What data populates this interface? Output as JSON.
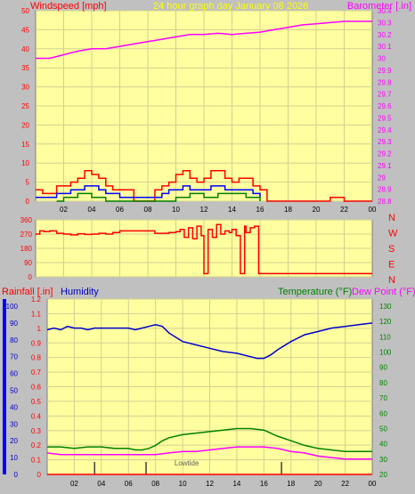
{
  "chart_data": [
    {
      "type": "line",
      "title": "24 hour graph day   January 08 2026",
      "left_axis_label": "Windspeed [mph]",
      "right_axis_label": "Barometer [.in]",
      "x_tick_labels": [
        "02",
        "04",
        "06",
        "08",
        "10",
        "12",
        "14",
        "16",
        "18",
        "20",
        "22",
        "00"
      ],
      "ylim_left": [
        0,
        50
      ],
      "left_ticks": [
        "0",
        "5",
        "10",
        "15",
        "20",
        "25",
        "30",
        "35",
        "40",
        "45",
        "50"
      ],
      "ylim_right": [
        28.8,
        30.4
      ],
      "right_ticks": [
        "28.8",
        "28.9",
        "29",
        "29.1",
        "29.2",
        "29.3",
        "29.4",
        "29.5",
        "29.6",
        "29.7",
        "29.8",
        "29.9",
        "30",
        "30.1",
        "30.2",
        "30.3",
        "30.4"
      ],
      "grid": true,
      "barometer": {
        "color": "#ff00ff",
        "x": [
          0.0,
          1.0,
          2.0,
          3.0,
          4.0,
          5.0,
          6.0,
          7.0,
          8.0,
          9.0,
          10.0,
          11.0,
          12.0,
          13.0,
          14.0,
          15.0,
          16.0,
          17.0,
          18.0,
          19.0,
          20.0,
          21.0,
          22.0,
          23.0,
          24.0
        ],
        "y": [
          30.0,
          30.0,
          30.03,
          30.06,
          30.08,
          30.08,
          30.1,
          30.12,
          30.14,
          30.16,
          30.18,
          30.2,
          30.2,
          30.21,
          30.2,
          30.21,
          30.22,
          30.24,
          30.26,
          30.28,
          30.29,
          30.3,
          30.31,
          30.31,
          30.31
        ]
      },
      "wind_gust": {
        "color": "#ff0000",
        "x": [
          0.0,
          0.5,
          1.0,
          1.5,
          2.0,
          2.5,
          3.0,
          3.5,
          4.0,
          4.5,
          5.0,
          5.5,
          6.0,
          7.0,
          7.5,
          8.0,
          8.5,
          9.0,
          9.5,
          10.0,
          10.5,
          11.0,
          11.5,
          12.0,
          12.5,
          13.0,
          13.5,
          14.0,
          14.5,
          15.0,
          15.5,
          16.0,
          16.5,
          17.0,
          18.0,
          19.0,
          20.0,
          20.5,
          21.0,
          22.0,
          23.0,
          24.0
        ],
        "y": [
          3,
          2,
          2,
          4,
          4,
          5,
          6,
          8,
          7,
          6,
          4,
          3,
          3,
          0,
          0,
          0,
          3,
          4,
          5,
          7,
          8,
          6,
          5,
          6,
          8,
          8,
          6,
          5,
          6,
          6,
          4,
          3,
          0,
          0,
          0,
          0,
          0,
          0,
          1,
          0,
          0,
          0
        ]
      },
      "wind_avg": {
        "color": "#0000ff",
        "x": [
          0.0,
          0.5,
          1.0,
          1.5,
          2.0,
          2.5,
          3.0,
          3.5,
          4.0,
          4.5,
          5.0,
          5.5,
          6.0,
          8.5,
          9.0,
          9.5,
          10.0,
          10.5,
          11.0,
          11.5,
          12.0,
          12.5,
          13.0,
          13.5,
          14.0,
          14.5,
          15.0,
          15.5,
          16.0
        ],
        "y": [
          1,
          1,
          1,
          2,
          2,
          3,
          3,
          4,
          4,
          3,
          2,
          2,
          1,
          1,
          2,
          3,
          3,
          4,
          3,
          3,
          3,
          4,
          4,
          3,
          3,
          3,
          3,
          2,
          1
        ]
      },
      "wind_low": {
        "color": "#008000",
        "x": [
          1.5,
          2.0,
          2.5,
          3.0,
          3.5,
          4.0,
          4.5,
          5.0,
          9.0,
          10.0,
          11.0,
          12.0,
          13.0,
          14.0,
          15.0,
          16.0
        ],
        "y": [
          0,
          1,
          1,
          2,
          2,
          1,
          1,
          0,
          0,
          1,
          2,
          1,
          2,
          2,
          1,
          0
        ]
      }
    },
    {
      "type": "line",
      "series_name": "Wind direction",
      "color": "#ff0000",
      "ylim": [
        0,
        360
      ],
      "left_ticks": [
        "0",
        "90",
        "180",
        "270",
        "360"
      ],
      "right_labels": [
        "N",
        "W",
        "S",
        "E",
        "N"
      ],
      "x": [
        0.0,
        0.3,
        0.6,
        1.0,
        1.5,
        2.0,
        2.5,
        3.0,
        3.5,
        4.0,
        4.5,
        5.0,
        5.5,
        6.0,
        6.5,
        7.0,
        7.5,
        8.0,
        8.5,
        9.0,
        9.5,
        10.0,
        10.3,
        10.6,
        10.9,
        11.2,
        11.5,
        11.8,
        12.0,
        12.3,
        12.6,
        12.9,
        13.2,
        13.5,
        13.8,
        14.0,
        14.3,
        14.6,
        14.9,
        15.0,
        15.3,
        15.6,
        15.9,
        16.2,
        16.5,
        17.0,
        18.0,
        20.0,
        22.0,
        24.0
      ],
      "y": [
        270,
        290,
        285,
        290,
        275,
        270,
        265,
        272,
        268,
        270,
        275,
        270,
        280,
        290,
        290,
        290,
        290,
        290,
        275,
        275,
        280,
        285,
        300,
        250,
        310,
        240,
        320,
        260,
        20,
        300,
        250,
        330,
        270,
        290,
        280,
        300,
        260,
        20,
        320,
        280,
        310,
        320,
        20,
        20,
        20,
        20,
        20,
        20,
        20,
        20
      ]
    },
    {
      "type": "line",
      "left_axis_label": "Rainfall [.in]",
      "left_axis_label_2": "Humidity",
      "right_axis_label": "Temperature (°F)",
      "right_axis_label_2": "Dew Point (°F)",
      "rain_ticks": [
        "0",
        "0.1",
        "0.2",
        "0.3",
        "0.4",
        "0.5",
        "0.6",
        "0.7",
        "0.8",
        "0.9",
        "1",
        "1.1",
        "1.2"
      ],
      "humidity_ticks": [
        "0",
        "10",
        "20",
        "30",
        "40",
        "50",
        "60",
        "70",
        "80",
        "90",
        "100"
      ],
      "temp_ticks": [
        "20",
        "30",
        "40",
        "50",
        "60",
        "70",
        "80",
        "90",
        "100",
        "110",
        "120",
        "130"
      ],
      "ylim_rain": [
        0,
        1.2
      ],
      "ylim_temp": [
        20,
        130
      ],
      "annotation": "Lowtide",
      "tide_marks_hours": [
        3.5,
        7.3,
        17.3
      ],
      "humidity": {
        "color": "#0000cc",
        "x": [
          0.0,
          0.5,
          1.0,
          1.5,
          2.0,
          2.5,
          3.0,
          3.5,
          4.0,
          5.0,
          6.0,
          6.5,
          7.0,
          7.5,
          8.0,
          8.5,
          9.0,
          10.0,
          11.0,
          12.0,
          13.0,
          14.0,
          15.0,
          15.5,
          16.0,
          16.5,
          17.0,
          18.0,
          19.0,
          20.0,
          21.0,
          22.0,
          23.0,
          24.0
        ],
        "y": [
          86,
          87,
          86,
          88,
          87,
          87,
          86,
          87,
          87,
          87,
          87,
          86,
          87,
          88,
          89,
          88,
          84,
          79,
          77,
          75,
          73,
          72,
          70,
          69,
          69,
          71,
          74,
          79,
          83,
          85,
          87,
          88,
          89,
          90
        ]
      },
      "rainfall": {
        "color": "#ff0000",
        "x": [
          0,
          24
        ],
        "y": [
          0.0,
          0.0
        ]
      },
      "temperature": {
        "color": "#008000",
        "x": [
          0.0,
          1.0,
          2.0,
          3.0,
          4.0,
          5.0,
          6.0,
          6.5,
          7.0,
          7.5,
          8.0,
          8.5,
          9.0,
          10.0,
          11.0,
          12.0,
          13.0,
          14.0,
          15.0,
          16.0,
          16.5,
          17.0,
          18.0,
          19.0,
          20.0,
          21.0,
          22.0,
          23.0,
          24.0
        ],
        "y": [
          38,
          38,
          37,
          38,
          38,
          37,
          37,
          36,
          36,
          37,
          39,
          42,
          44,
          46,
          47,
          48,
          49,
          50,
          50,
          49,
          47,
          45,
          42,
          39,
          37,
          36,
          35,
          35,
          35
        ]
      },
      "dewpoint": {
        "color": "#ff00ff",
        "x": [
          0.0,
          1.0,
          2.0,
          3.0,
          4.0,
          5.0,
          6.0,
          7.0,
          8.0,
          9.0,
          10.0,
          11.0,
          12.0,
          13.0,
          14.0,
          15.0,
          16.0,
          17.0,
          18.0,
          19.0,
          20.0,
          21.0,
          22.0,
          23.0,
          24.0
        ],
        "y": [
          34,
          33,
          33,
          33,
          33,
          33,
          33,
          33,
          33,
          34,
          35,
          35,
          36,
          37,
          38,
          38,
          38,
          37,
          35,
          34,
          32,
          31,
          30,
          30,
          30
        ]
      }
    }
  ],
  "colors": {
    "frame_bg": "#c0c0c0",
    "plot_bg": "#ffffa0",
    "grid": "#d0d090",
    "red": "#ff0000",
    "blue": "#0000ff",
    "green": "#008000",
    "magenta": "#ff00ff",
    "title": "#ffff00"
  }
}
